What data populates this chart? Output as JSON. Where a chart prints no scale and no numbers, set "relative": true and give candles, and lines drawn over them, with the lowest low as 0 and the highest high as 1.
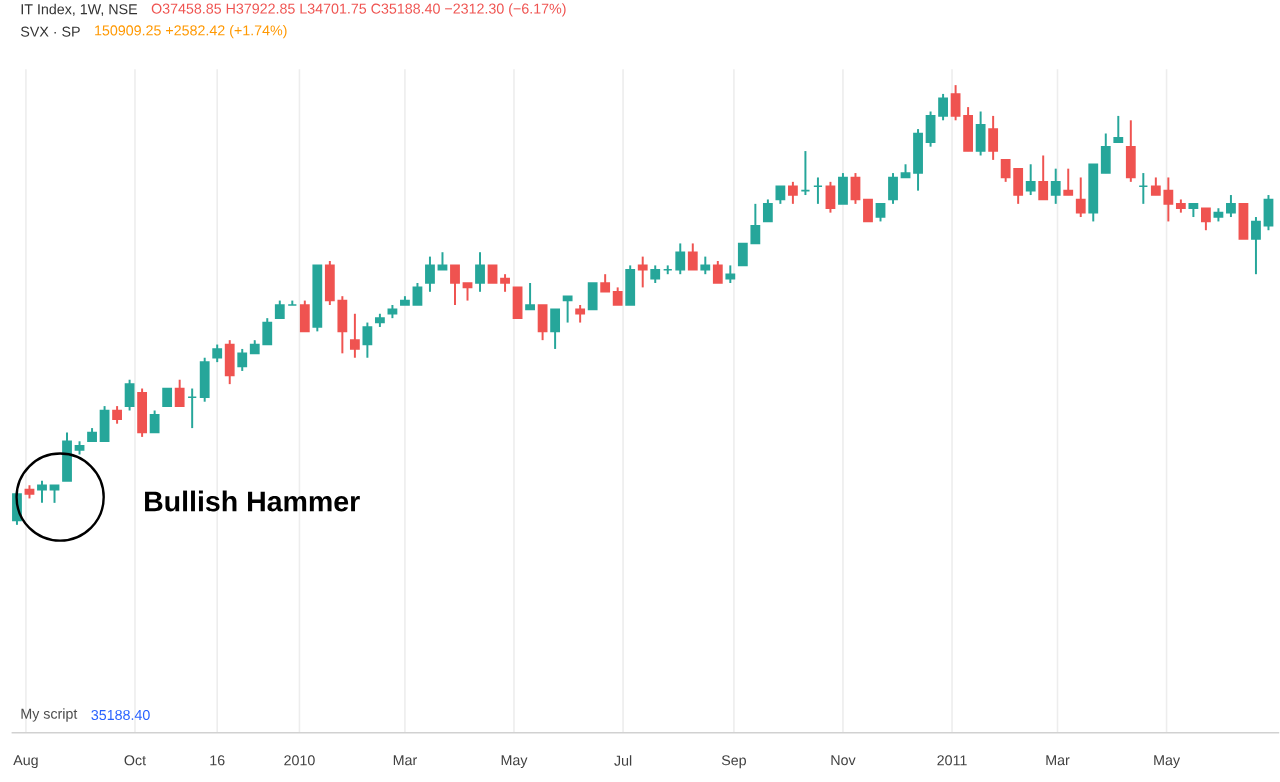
{
  "chart_data": {
    "type": "candlestick",
    "relative": true,
    "grid": "x",
    "tick_labels": "x",
    "xlim": [
      "2009-07-24",
      "2011-07-03"
    ],
    "xticks": [
      {
        "value": "2009-08-01",
        "label": "Aug"
      },
      {
        "value": "2009-10-01",
        "label": "Oct"
      },
      {
        "value": "2009-11-16",
        "label": "16"
      },
      {
        "value": "2010-01-01",
        "label": "2010"
      },
      {
        "value": "2010-03-01",
        "label": "Mar"
      },
      {
        "value": "2010-05-01",
        "label": "May"
      },
      {
        "value": "2010-07-01",
        "label": "Jul"
      },
      {
        "value": "2010-09-01",
        "label": "Sep"
      },
      {
        "value": "2010-11-01",
        "label": "Nov"
      },
      {
        "value": "2011-01-01",
        "label": "2011"
      },
      {
        "value": "2011-03-01",
        "label": "Mar"
      },
      {
        "value": "2011-05-01",
        "label": "May"
      }
    ],
    "x": [
      "2009-07-27",
      "2009-08-03",
      "2009-08-10",
      "2009-08-17",
      "2009-08-24",
      "2009-08-31",
      "2009-09-07",
      "2009-09-14",
      "2009-09-21",
      "2009-09-28",
      "2009-10-05",
      "2009-10-12",
      "2009-10-19",
      "2009-10-26",
      "2009-11-02",
      "2009-11-09",
      "2009-11-16",
      "2009-11-23",
      "2009-11-30",
      "2009-12-07",
      "2009-12-14",
      "2009-12-21",
      "2009-12-28",
      "2010-01-04",
      "2010-01-11",
      "2010-01-18",
      "2010-01-25",
      "2010-02-01",
      "2010-02-08",
      "2010-02-15",
      "2010-02-22",
      "2010-03-01",
      "2010-03-08",
      "2010-03-15",
      "2010-03-22",
      "2010-03-29",
      "2010-04-05",
      "2010-04-12",
      "2010-04-19",
      "2010-04-26",
      "2010-05-03",
      "2010-05-10",
      "2010-05-17",
      "2010-05-24",
      "2010-05-31",
      "2010-06-07",
      "2010-06-14",
      "2010-06-21",
      "2010-06-28",
      "2010-07-05",
      "2010-07-12",
      "2010-07-19",
      "2010-07-26",
      "2010-08-02",
      "2010-08-09",
      "2010-08-16",
      "2010-08-23",
      "2010-08-30",
      "2010-09-06",
      "2010-09-13",
      "2010-09-20",
      "2010-09-27",
      "2010-10-04",
      "2010-10-11",
      "2010-10-18",
      "2010-10-25",
      "2010-11-01",
      "2010-11-08",
      "2010-11-15",
      "2010-11-22",
      "2010-11-29",
      "2010-12-06",
      "2010-12-13",
      "2010-12-20",
      "2010-12-27",
      "2011-01-03",
      "2011-01-10",
      "2011-01-17",
      "2011-01-24",
      "2011-01-31",
      "2011-02-07",
      "2011-02-14",
      "2011-02-21",
      "2011-02-28",
      "2011-03-07",
      "2011-03-14",
      "2011-03-21",
      "2011-03-28",
      "2011-04-04",
      "2011-04-11",
      "2011-04-18",
      "2011-04-25",
      "2011-05-02",
      "2011-05-09",
      "2011-05-16",
      "2011-05-23",
      "2011-05-30",
      "2011-06-06",
      "2011-06-13",
      "2011-06-20",
      "2011-06-27"
    ],
    "ohlc": [
      [
        0.01,
        0.08,
        0,
        0.07
      ],
      [
        0.08,
        0.09,
        0.06,
        0.07
      ],
      [
        0.08,
        0.1,
        0.05,
        0.09
      ],
      [
        0.08,
        0.09,
        0.05,
        0.09
      ],
      [
        0.1,
        0.21,
        0.1,
        0.19
      ],
      [
        0.17,
        0.19,
        0.16,
        0.18
      ],
      [
        0.19,
        0.22,
        0.19,
        0.21
      ],
      [
        0.19,
        0.27,
        0.19,
        0.26
      ],
      [
        0.26,
        0.27,
        0.23,
        0.24
      ],
      [
        0.27,
        0.33,
        0.26,
        0.32
      ],
      [
        0.3,
        0.31,
        0.2,
        0.21
      ],
      [
        0.21,
        0.26,
        0.21,
        0.25
      ],
      [
        0.27,
        0.31,
        0.27,
        0.31
      ],
      [
        0.31,
        0.33,
        0.27,
        0.27
      ],
      [
        0.29,
        0.31,
        0.22,
        0.29
      ],
      [
        0.29,
        0.38,
        0.28,
        0.37
      ],
      [
        0.38,
        0.41,
        0.37,
        0.4
      ],
      [
        0.41,
        0.42,
        0.32,
        0.34
      ],
      [
        0.36,
        0.4,
        0.35,
        0.39
      ],
      [
        0.39,
        0.42,
        0.39,
        0.41
      ],
      [
        0.41,
        0.47,
        0.41,
        0.46
      ],
      [
        0.47,
        0.51,
        0.47,
        0.5
      ],
      [
        0.5,
        0.51,
        0.5,
        0.5
      ],
      [
        0.5,
        0.51,
        0.44,
        0.44
      ],
      [
        0.45,
        0.59,
        0.44,
        0.59
      ],
      [
        0.59,
        0.6,
        0.5,
        0.51
      ],
      [
        0.51,
        0.52,
        0.39,
        0.44
      ],
      [
        0.42,
        0.48,
        0.38,
        0.4
      ],
      [
        0.41,
        0.46,
        0.38,
        0.45
      ],
      [
        0.46,
        0.48,
        0.45,
        0.47
      ],
      [
        0.48,
        0.5,
        0.47,
        0.49
      ],
      [
        0.5,
        0.52,
        0.5,
        0.51
      ],
      [
        0.5,
        0.55,
        0.5,
        0.54
      ],
      [
        0.55,
        0.61,
        0.53,
        0.59
      ],
      [
        0.58,
        0.62,
        0.58,
        0.59
      ],
      [
        0.59,
        0.59,
        0.5,
        0.55
      ],
      [
        0.55,
        0.55,
        0.51,
        0.54
      ],
      [
        0.55,
        0.62,
        0.53,
        0.59
      ],
      [
        0.59,
        0.59,
        0.55,
        0.55
      ],
      [
        0.56,
        0.57,
        0.53,
        0.55
      ],
      [
        0.54,
        0.54,
        0.47,
        0.47
      ],
      [
        0.49,
        0.55,
        0.49,
        0.5
      ],
      [
        0.5,
        0.5,
        0.42,
        0.44
      ],
      [
        0.44,
        0.49,
        0.4,
        0.49
      ],
      [
        0.51,
        0.52,
        0.46,
        0.52
      ],
      [
        0.49,
        0.5,
        0.46,
        0.48
      ],
      [
        0.49,
        0.55,
        0.49,
        0.55
      ],
      [
        0.55,
        0.57,
        0.53,
        0.53
      ],
      [
        0.53,
        0.54,
        0.5,
        0.5
      ],
      [
        0.5,
        0.59,
        0.5,
        0.58
      ],
      [
        0.59,
        0.61,
        0.54,
        0.58
      ],
      [
        0.56,
        0.59,
        0.55,
        0.58
      ],
      [
        0.58,
        0.59,
        0.57,
        0.58
      ],
      [
        0.58,
        0.64,
        0.57,
        0.62
      ],
      [
        0.62,
        0.64,
        0.58,
        0.58
      ],
      [
        0.58,
        0.61,
        0.57,
        0.59
      ],
      [
        0.59,
        0.6,
        0.55,
        0.55
      ],
      [
        0.56,
        0.59,
        0.55,
        0.57
      ],
      [
        0.59,
        0.64,
        0.59,
        0.64
      ],
      [
        0.64,
        0.73,
        0.64,
        0.68
      ],
      [
        0.69,
        0.74,
        0.69,
        0.73
      ],
      [
        0.74,
        0.77,
        0.73,
        0.77
      ],
      [
        0.77,
        0.78,
        0.73,
        0.75
      ],
      [
        0.76,
        0.85,
        0.75,
        0.76
      ],
      [
        0.77,
        0.79,
        0.73,
        0.77
      ],
      [
        0.77,
        0.78,
        0.71,
        0.72
      ],
      [
        0.73,
        0.8,
        0.73,
        0.79
      ],
      [
        0.79,
        0.8,
        0.73,
        0.74
      ],
      [
        0.74,
        0.74,
        0.69,
        0.69
      ],
      [
        0.7,
        0.73,
        0.69,
        0.73
      ],
      [
        0.74,
        0.8,
        0.73,
        0.79
      ],
      [
        0.79,
        0.82,
        0.79,
        0.8
      ],
      [
        0.8,
        0.9,
        0.76,
        0.89
      ],
      [
        0.87,
        0.94,
        0.86,
        0.93
      ],
      [
        0.93,
        0.98,
        0.92,
        0.97
      ],
      [
        0.98,
        1,
        0.92,
        0.93
      ],
      [
        0.93,
        0.95,
        0.85,
        0.85
      ],
      [
        0.85,
        0.94,
        0.84,
        0.91
      ],
      [
        0.9,
        0.93,
        0.83,
        0.85
      ],
      [
        0.83,
        0.83,
        0.78,
        0.79
      ],
      [
        0.81,
        0.81,
        0.73,
        0.75
      ],
      [
        0.76,
        0.82,
        0.75,
        0.78
      ],
      [
        0.78,
        0.84,
        0.74,
        0.74
      ],
      [
        0.75,
        0.81,
        0.73,
        0.78
      ],
      [
        0.76,
        0.81,
        0.75,
        0.75
      ],
      [
        0.74,
        0.79,
        0.7,
        0.71
      ],
      [
        0.71,
        0.82,
        0.69,
        0.82
      ],
      [
        0.8,
        0.89,
        0.8,
        0.86
      ],
      [
        0.87,
        0.93,
        0.87,
        0.88
      ],
      [
        0.86,
        0.92,
        0.78,
        0.79
      ],
      [
        0.77,
        0.8,
        0.73,
        0.77
      ],
      [
        0.77,
        0.79,
        0.75,
        0.75
      ],
      [
        0.76,
        0.79,
        0.69,
        0.73
      ],
      [
        0.73,
        0.74,
        0.71,
        0.72
      ],
      [
        0.72,
        0.73,
        0.7,
        0.73
      ],
      [
        0.72,
        0.72,
        0.67,
        0.69
      ],
      [
        0.7,
        0.72,
        0.69,
        0.71
      ],
      [
        0.71,
        0.75,
        0.7,
        0.73
      ],
      [
        0.73,
        0.73,
        0.65,
        0.65
      ],
      [
        0.65,
        0.7,
        0.57,
        0.69
      ],
      [
        0.68,
        0.75,
        0.67,
        0.74
      ]
    ],
    "annotations": [
      "IT Index, 1W, NSE",
      "O37458.85 H37922.85 L34701.75 C35188.40 −2312.30 (−6.17%)",
      "SVX · SP",
      "150909.25 +2582.42 (+1.74%)",
      "My script",
      "35188.40",
      "Bullish Hammer"
    ]
  }
}
